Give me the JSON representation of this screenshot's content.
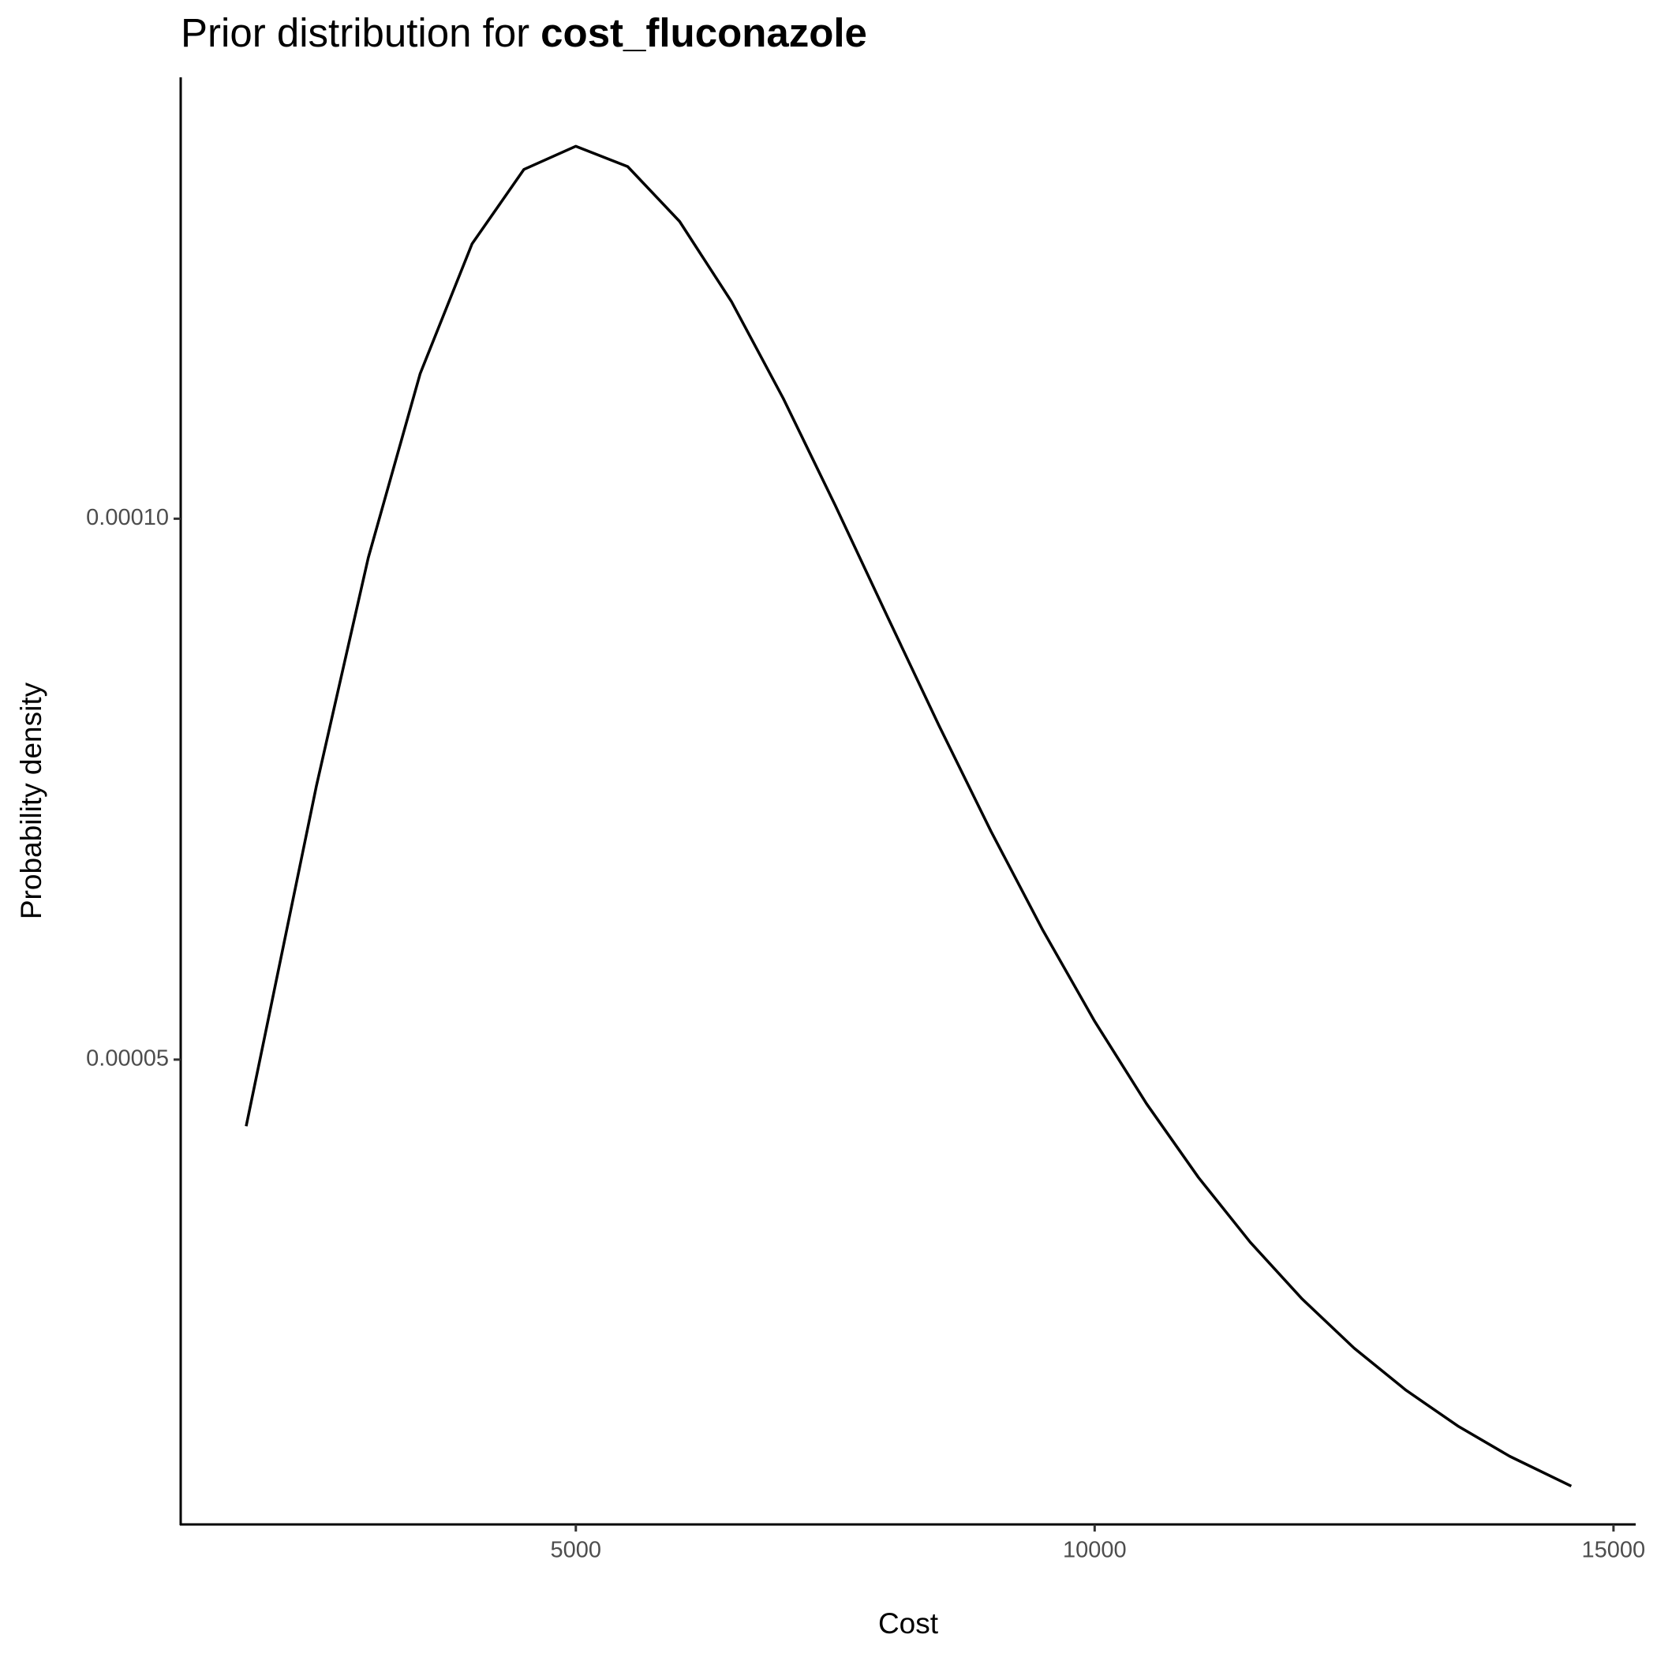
{
  "chart_data": {
    "type": "line",
    "title": "Prior distribution for",
    "title_bold": "cost_fluconazole",
    "x_label": "Cost",
    "y_label": "Probability density",
    "x": [
      1823,
      2000,
      2500,
      3000,
      3500,
      4000,
      4500,
      5000,
      5500,
      6000,
      6500,
      7000,
      7500,
      8000,
      8500,
      9000,
      9500,
      10000,
      10500,
      11000,
      11500,
      12000,
      12500,
      13000,
      13500,
      14000,
      14593
    ],
    "series": [
      {
        "color": "#000000",
        "values": [
          4.384e-05,
          5.205e-05,
          7.53e-05,
          9.64e-05,
          0.00011341,
          0.00012541,
          0.00013229,
          0.00013443,
          0.00013255,
          0.00012748,
          0.00012007,
          0.0001111,
          0.00010123,
          9.101e-05,
          8.087e-05,
          7.112e-05,
          6.197e-05,
          5.354e-05,
          4.592e-05,
          3.911e-05,
          3.311e-05,
          2.787e-05,
          2.333e-05,
          1.944e-05,
          1.613e-05,
          1.333e-05,
          1.0575e-05
        ]
      }
    ],
    "xlim": [
      1192,
      15214
    ],
    "ylim": [
      7.03e-06,
      0.0001408
    ],
    "xticks": [
      5000,
      10000,
      15000
    ],
    "yticks": [
      5e-05,
      {
        "value": 0.0001,
        "label": "0.00010"
      }
    ],
    "grid": false
  }
}
